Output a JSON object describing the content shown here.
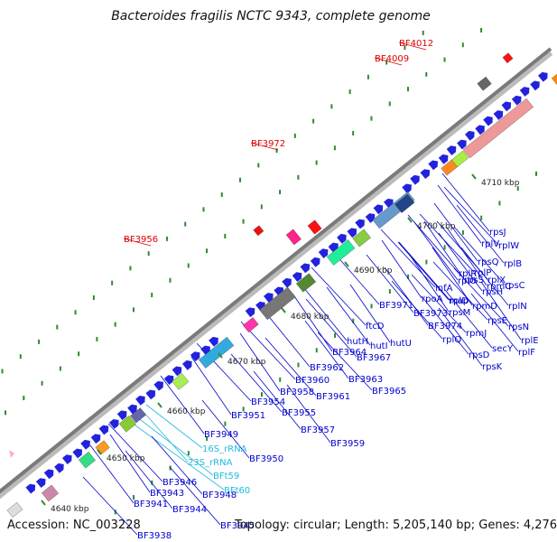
{
  "title": "Bacteroides fragilis NCTC 9343, complete genome",
  "footer": {
    "accession": "Accession: NC_003228",
    "summary": "Topology: circular; Length: 5,205,140 bp; Genes: 4,276"
  },
  "scale_ticks": [
    "4640 kbp",
    "4650 kbp",
    "4660 kbp",
    "4670 kbp",
    "4680 kbp",
    "4690 kbp",
    "4700 kbp",
    "4710 kbp"
  ],
  "highlight_labels": [
    "BF4012",
    "BF4009",
    "BF3972",
    "BF3956"
  ],
  "rna_labels": [
    "16S_rRNA",
    "23S_rRNA",
    "BFt59",
    "BFt60"
  ],
  "gene_labels": [
    "BF3938",
    "BF3945",
    "BF3944",
    "BF3941",
    "BF3943",
    "BF3946",
    "BF3948",
    "BF3950",
    "BF3949",
    "BF3951",
    "BF3954",
    "BF3955",
    "BF3957",
    "BF3959",
    "BF3958",
    "BF3960",
    "BF3961",
    "BF3962",
    "BF3963",
    "BF3964",
    "BF3965",
    "BF3967",
    "hutH",
    "hutI",
    "hutU",
    "ftcD",
    "BF3971",
    "BF3973",
    "BF3974",
    "rpoA",
    "infA",
    "rplQ",
    "rpsD",
    "rpsK",
    "rpsM",
    "rpmJ",
    "map",
    "secY",
    "rplO",
    "rpmD",
    "rpsE",
    "rplR",
    "rplF",
    "rpsH",
    "rplE",
    "rpsN",
    "rplX",
    "rplN",
    "rpsQ",
    "rpmC",
    "rplP",
    "rpsC",
    "rplB",
    "rplV",
    "rpsS",
    "rplW",
    "rplD",
    "rpsJ"
  ]
}
